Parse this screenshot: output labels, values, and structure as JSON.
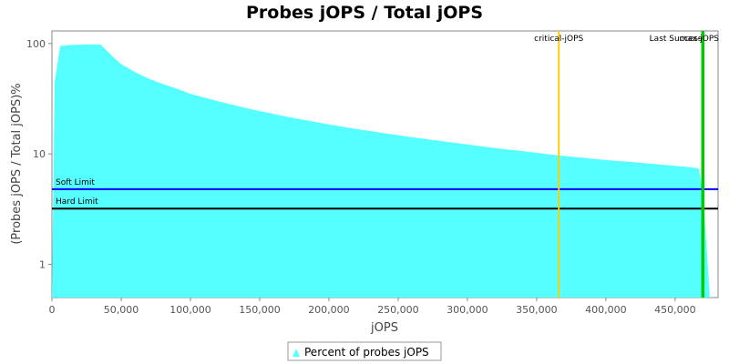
{
  "chart_data": {
    "type": "area",
    "title": "Probes jOPS / Total jOPS",
    "xlabel": "jOPS",
    "ylabel": "(Probes jOPS / Total jOPS)%",
    "x_scale": "linear",
    "y_scale": "log",
    "xlim": [
      0,
      481000
    ],
    "ylim": [
      0.5,
      130
    ],
    "x_ticks": [
      0,
      50000,
      100000,
      150000,
      200000,
      250000,
      300000,
      350000,
      400000,
      450000
    ],
    "x_tick_labels": [
      "0",
      "50,000",
      "100,000",
      "150,000",
      "200,000",
      "250,000",
      "300,000",
      "350,000",
      "400,000",
      "450,000"
    ],
    "y_ticks": [
      1,
      10,
      100
    ],
    "y_tick_labels": [
      "1",
      "10",
      "100"
    ],
    "series": [
      {
        "name": "Percent of probes jOPS",
        "color": "#55ffff",
        "x": [
          0,
          2000,
          6000,
          15000,
          25000,
          35000,
          45000,
          50000,
          60000,
          70000,
          80000,
          90000,
          100000,
          120000,
          140000,
          160000,
          180000,
          200000,
          220000,
          240000,
          260000,
          280000,
          300000,
          320000,
          340000,
          360000,
          380000,
          400000,
          420000,
          440000,
          460000,
          467000,
          470000,
          472000,
          474000,
          475000
        ],
        "y": [
          0.5,
          45,
          95,
          97,
          98,
          98,
          74,
          65,
          55,
          48,
          43,
          39,
          35,
          30,
          26,
          23,
          20.5,
          18.5,
          16.8,
          15.4,
          14.2,
          13.1,
          12.2,
          11.3,
          10.6,
          9.9,
          9.3,
          8.8,
          8.4,
          8.0,
          7.6,
          7.4,
          4.5,
          2,
          0.8,
          0.5
        ]
      }
    ],
    "reference_lines": [
      {
        "orientation": "horizontal",
        "value": 4.8,
        "label": "Soft Limit",
        "color": "#0000ff"
      },
      {
        "orientation": "horizontal",
        "value": 3.2,
        "label": "Hard Limit",
        "color": "#000000"
      },
      {
        "orientation": "vertical",
        "value": 366000,
        "label": "critical-jOPS",
        "color": "#ffcc00"
      },
      {
        "orientation": "vertical",
        "value": 469500,
        "label": "Last Success",
        "color": "#00cc00"
      },
      {
        "orientation": "vertical",
        "value": 470500,
        "label": "max-jOPS",
        "color": "#00cc00"
      }
    ],
    "legend": {
      "placement": "bottom",
      "entries": [
        "Percent of probes jOPS"
      ]
    },
    "grid": false
  }
}
